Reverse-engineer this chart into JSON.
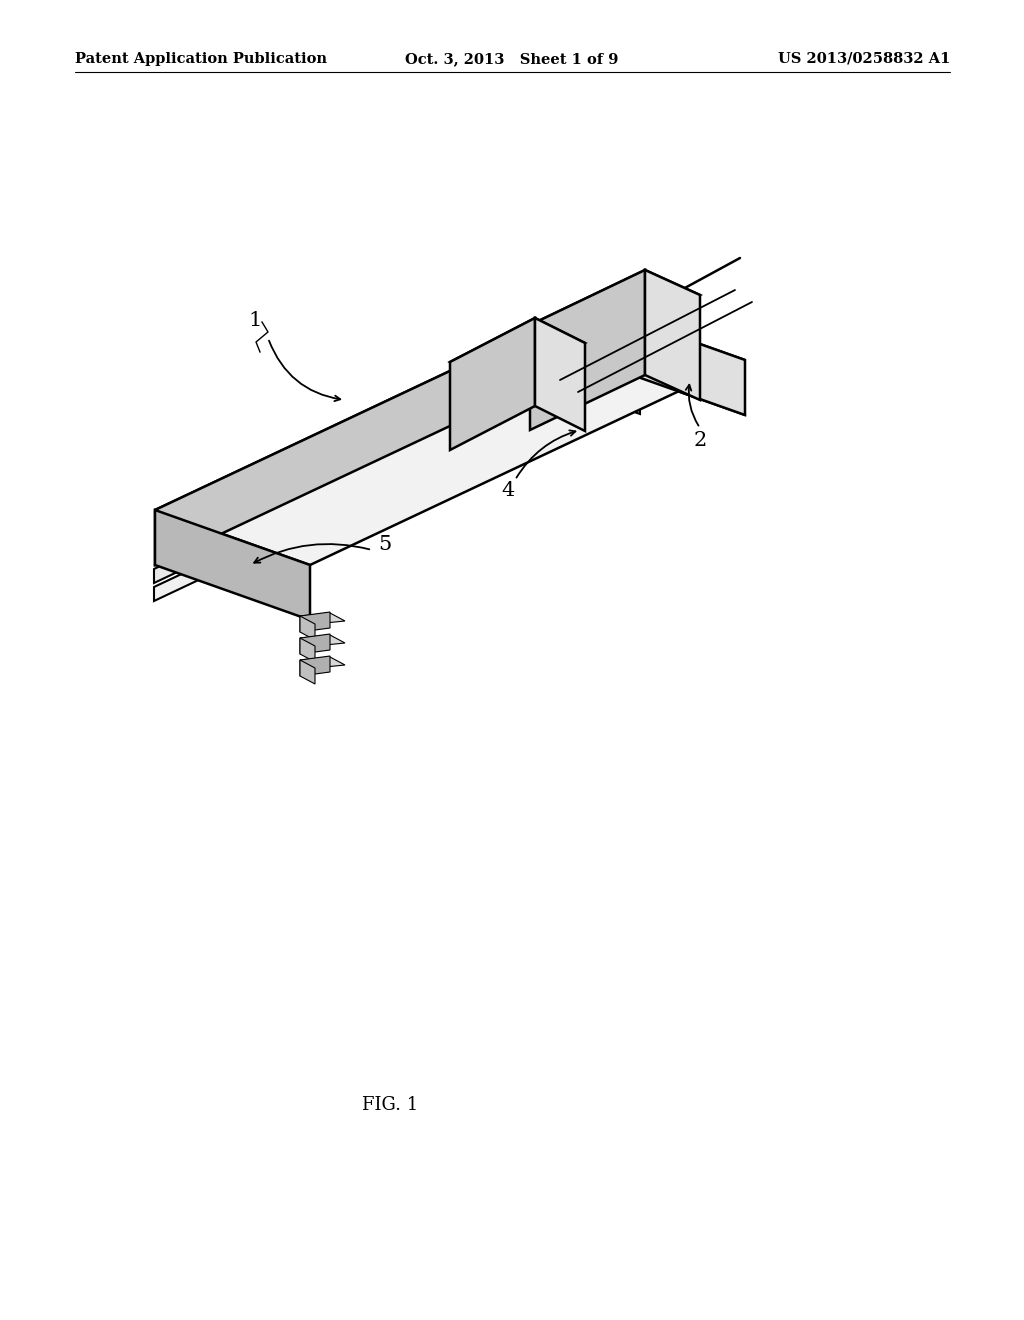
{
  "background_color": "#ffffff",
  "header": {
    "left": "Patent Application Publication",
    "center": "Oct. 3, 2013   Sheet 1 of 9",
    "right": "US 2013/0258832 A1",
    "font_size": 10.5
  },
  "figure_label": "FIG. 1",
  "line_color": "#000000",
  "line_width": 1.8,
  "face_top": "#f2f2f2",
  "face_front": "#c8c8c8",
  "face_right": "#e0e0e0",
  "face_dark": "#a0a0a0"
}
